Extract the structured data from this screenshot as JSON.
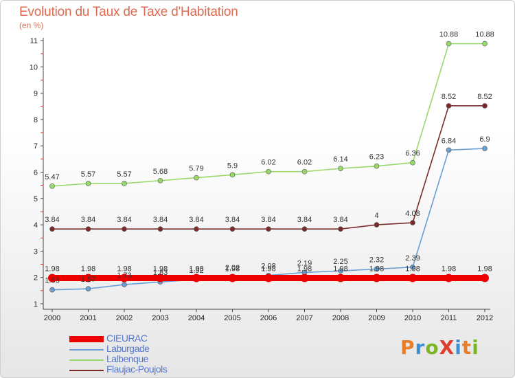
{
  "title": "Evolution du Taux de Taxe d'Habitation",
  "subtitle": "(en %)",
  "logo_text": "ProXiti",
  "logo_colors": [
    "#e87d2a",
    "#3a8fd8",
    "#7ab526",
    "#e23b2f",
    "#3a8fd8",
    "#e87d2a",
    "#7ab526"
  ],
  "chart_data": {
    "type": "line",
    "title": "Evolution du Taux de Taxe d'Habitation",
    "ylabel": "(en %)",
    "xlabel": "",
    "x": [
      "2000",
      "2001",
      "2002",
      "2003",
      "2004",
      "2005",
      "2006",
      "2007",
      "2008",
      "2009",
      "2010",
      "2011",
      "2012"
    ],
    "ylim": [
      1,
      11
    ],
    "yticks": [
      "1",
      "2",
      "3",
      "4",
      "5",
      "6",
      "7",
      "8",
      "9",
      "10",
      "11"
    ],
    "grid": false,
    "legend_position": "bottom-left",
    "series": [
      {
        "name": "CIEURAC",
        "color": "#ee0000",
        "values": [
          1.98,
          1.98,
          1.98,
          1.98,
          1.98,
          1.98,
          1.98,
          1.98,
          1.98,
          1.98,
          1.98,
          1.98,
          1.98
        ]
      },
      {
        "name": "Laburgade",
        "color": "#6a9fd4",
        "values": [
          1.53,
          1.57,
          1.73,
          1.83,
          1.92,
          2.02,
          2.08,
          2.19,
          2.25,
          2.32,
          2.39,
          6.84,
          6.9
        ]
      },
      {
        "name": "Lalbenque",
        "color": "#99d96a",
        "values": [
          5.47,
          5.57,
          5.57,
          5.68,
          5.79,
          5.9,
          6.02,
          6.02,
          6.14,
          6.23,
          6.36,
          10.88,
          10.88
        ]
      },
      {
        "name": "Flaujac-Poujols",
        "color": "#7a2a2a",
        "values": [
          3.84,
          3.84,
          3.84,
          3.84,
          3.84,
          3.84,
          3.84,
          3.84,
          3.84,
          4,
          4.08,
          8.52,
          8.52
        ]
      }
    ]
  }
}
